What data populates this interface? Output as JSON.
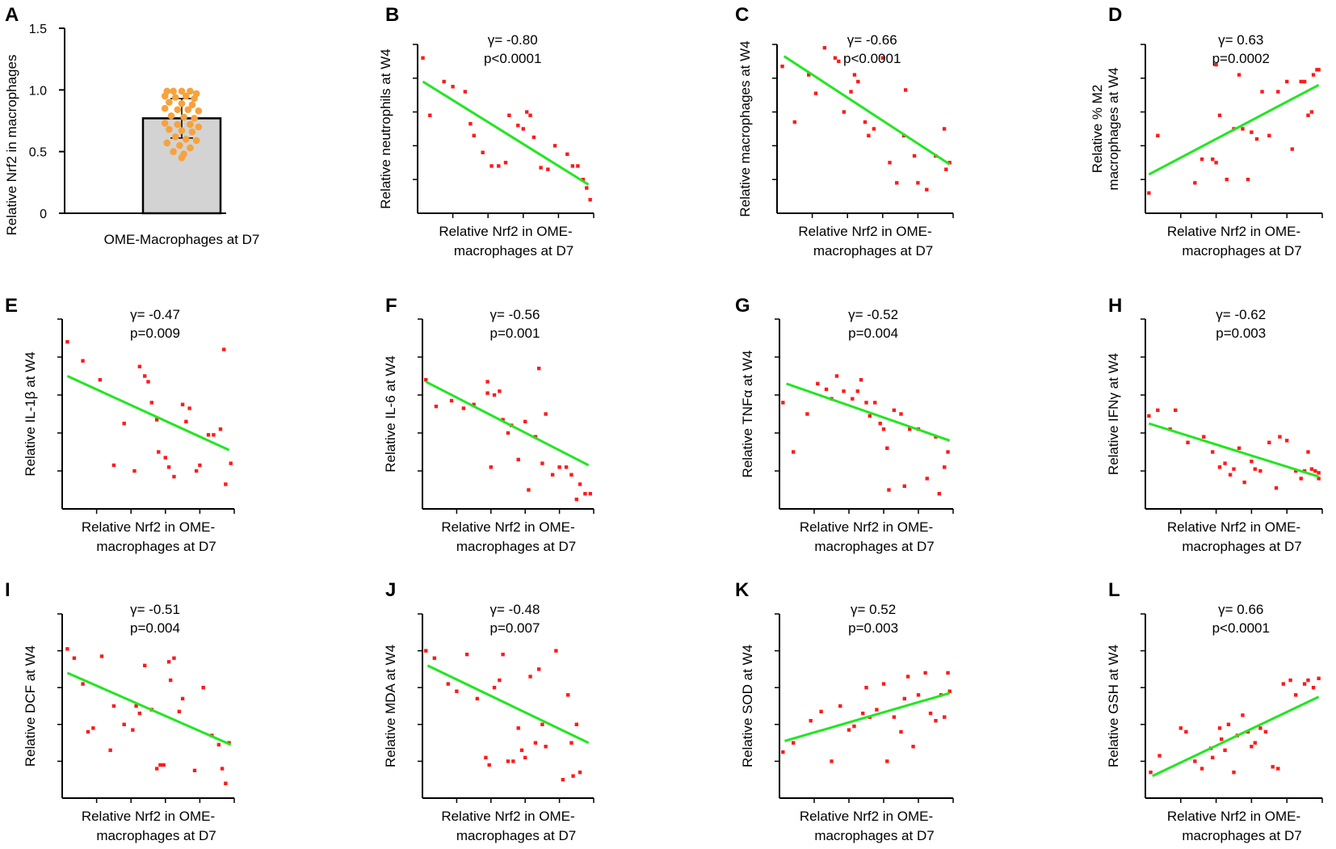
{
  "colors": {
    "point": "#ff1a1a",
    "fit": "#22e622",
    "bar_fill": "#d3d3d3",
    "bar_point": "#f7a23c",
    "axis": "#000000"
  },
  "chart_data": [
    {
      "id": "A",
      "type": "bar",
      "letter": "A",
      "categories": [
        "OME-Macrophages at D7"
      ],
      "values": [
        0.77
      ],
      "error": [
        0.16
      ],
      "ylabel": "Relative Nrf2 in macrophages",
      "ylim": [
        0,
        1.5
      ],
      "yticks": [
        0,
        0.5,
        1.0,
        1.5
      ],
      "ytick_labels": [
        "0",
        "0.5",
        "1.0",
        "1.5"
      ],
      "points": [
        [
          -0.35,
          0.99
        ],
        [
          -0.2,
          0.99
        ],
        [
          0.0,
          0.99
        ],
        [
          0.2,
          0.99
        ],
        [
          0.35,
          0.97
        ],
        [
          -0.4,
          0.95
        ],
        [
          -0.15,
          0.94
        ],
        [
          0.1,
          0.95
        ],
        [
          0.3,
          0.93
        ],
        [
          -0.3,
          0.9
        ],
        [
          0.0,
          0.89
        ],
        [
          0.25,
          0.88
        ],
        [
          -0.4,
          0.85
        ],
        [
          -0.1,
          0.84
        ],
        [
          0.15,
          0.84
        ],
        [
          0.4,
          0.83
        ],
        [
          -0.25,
          0.79
        ],
        [
          0.05,
          0.78
        ],
        [
          0.3,
          0.77
        ],
        [
          -0.4,
          0.73
        ],
        [
          -0.1,
          0.72
        ],
        [
          0.2,
          0.72
        ],
        [
          0.4,
          0.7
        ],
        [
          -0.3,
          0.68
        ],
        [
          0.0,
          0.67
        ],
        [
          0.25,
          0.66
        ],
        [
          -0.15,
          0.62
        ],
        [
          0.1,
          0.6
        ],
        [
          0.35,
          0.59
        ],
        [
          -0.35,
          0.57
        ],
        [
          -0.05,
          0.55
        ],
        [
          0.2,
          0.53
        ],
        [
          -0.2,
          0.5
        ],
        [
          0.05,
          0.48
        ],
        [
          0.0,
          0.45
        ]
      ]
    },
    {
      "id": "B",
      "type": "scatter",
      "letter": "B",
      "ylabel": "Relative neutrophils at W4",
      "xlabel": [
        "Relative Nrf2 in OME-",
        "macrophages at D7"
      ],
      "stat": [
        "γ= -0.80",
        "p<0.0001"
      ],
      "xlim": [
        0,
        1
      ],
      "ylim": [
        0,
        1
      ],
      "ticks": [
        0.2,
        0.4,
        0.6,
        0.8,
        1.0
      ],
      "fit": [
        [
          0.03,
          0.78
        ],
        [
          0.97,
          0.17
        ]
      ],
      "x": [
        0.03,
        0.07,
        0.15,
        0.2,
        0.27,
        0.3,
        0.32,
        0.37,
        0.42,
        0.46,
        0.5,
        0.52,
        0.57,
        0.6,
        0.62,
        0.64,
        0.66,
        0.7,
        0.74,
        0.78,
        0.85,
        0.88,
        0.91,
        0.94,
        0.96,
        0.98
      ],
      "y": [
        0.92,
        0.58,
        0.78,
        0.75,
        0.72,
        0.53,
        0.46,
        0.36,
        0.28,
        0.28,
        0.3,
        0.58,
        0.52,
        0.5,
        0.6,
        0.58,
        0.45,
        0.27,
        0.26,
        0.4,
        0.35,
        0.28,
        0.28,
        0.2,
        0.15,
        0.08
      ]
    },
    {
      "id": "C",
      "type": "scatter",
      "letter": "C",
      "ylabel": "Relative macrophages at W4",
      "xlabel": [
        "Relative Nrf2 in OME-",
        "macrophages at D7"
      ],
      "stat": [
        "γ= -0.66",
        "p<0.0001"
      ],
      "xlim": [
        0,
        1
      ],
      "ylim": [
        0,
        1
      ],
      "ticks": [
        0.2,
        0.4,
        0.6,
        0.8,
        1.0
      ],
      "fit": [
        [
          0.04,
          0.93
        ],
        [
          0.98,
          0.29
        ]
      ],
      "x": [
        0.03,
        0.1,
        0.18,
        0.22,
        0.27,
        0.33,
        0.35,
        0.38,
        0.42,
        0.44,
        0.46,
        0.5,
        0.52,
        0.55,
        0.6,
        0.64,
        0.68,
        0.72,
        0.73,
        0.78,
        0.8,
        0.85,
        0.9,
        0.95,
        0.96,
        0.98
      ],
      "y": [
        0.87,
        0.54,
        0.82,
        0.71,
        0.98,
        0.92,
        0.9,
        0.6,
        0.72,
        0.82,
        0.78,
        0.54,
        0.46,
        0.5,
        0.92,
        0.3,
        0.18,
        0.46,
        0.73,
        0.34,
        0.18,
        0.14,
        0.34,
        0.5,
        0.26,
        0.3
      ]
    },
    {
      "id": "D",
      "type": "scatter",
      "letter": "D",
      "ylabel": [
        "Relative % M2",
        "macrophages at W4"
      ],
      "xlabel": [
        "Relative Nrf2 in OME-",
        "macrophages at D7"
      ],
      "stat": [
        "γ= 0.63",
        "p=0.0002"
      ],
      "xlim": [
        0,
        1
      ],
      "ylim": [
        0,
        1
      ],
      "ticks": [
        0.2,
        0.4,
        0.6,
        0.8,
        1.0
      ],
      "fit": [
        [
          0.02,
          0.23
        ],
        [
          0.98,
          0.76
        ]
      ],
      "x": [
        0.02,
        0.07,
        0.28,
        0.32,
        0.38,
        0.4,
        0.4,
        0.42,
        0.46,
        0.5,
        0.53,
        0.55,
        0.58,
        0.6,
        0.63,
        0.66,
        0.7,
        0.75,
        0.8,
        0.83,
        0.88,
        0.9,
        0.92,
        0.94,
        0.95,
        0.97,
        0.98
      ],
      "y": [
        0.12,
        0.46,
        0.18,
        0.32,
        0.32,
        0.3,
        0.88,
        0.58,
        0.2,
        0.5,
        0.82,
        0.5,
        0.2,
        0.48,
        0.44,
        0.72,
        0.46,
        0.72,
        0.78,
        0.38,
        0.78,
        0.78,
        0.58,
        0.6,
        0.82,
        0.85,
        0.85
      ]
    },
    {
      "id": "E",
      "type": "scatter",
      "letter": "E",
      "ylabel": "Relative IL-1β at W4",
      "xlabel": [
        "Relative Nrf2 in OME-",
        "macrophages at D7"
      ],
      "stat": [
        "γ= -0.47",
        "p=0.009"
      ],
      "xlim": [
        0,
        1
      ],
      "ylim": [
        0,
        1
      ],
      "ticks": [
        0.2,
        0.4,
        0.6,
        0.8,
        1.0
      ],
      "fit": [
        [
          0.03,
          0.7
        ],
        [
          0.97,
          0.31
        ]
      ],
      "x": [
        0.03,
        0.12,
        0.22,
        0.3,
        0.36,
        0.42,
        0.45,
        0.48,
        0.5,
        0.52,
        0.55,
        0.56,
        0.6,
        0.62,
        0.65,
        0.7,
        0.72,
        0.74,
        0.78,
        0.8,
        0.85,
        0.88,
        0.92,
        0.94,
        0.95,
        0.98
      ],
      "y": [
        0.88,
        0.78,
        0.68,
        0.23,
        0.45,
        0.2,
        0.75,
        0.7,
        0.67,
        0.56,
        0.47,
        0.3,
        0.27,
        0.22,
        0.17,
        0.55,
        0.46,
        0.53,
        0.2,
        0.23,
        0.39,
        0.39,
        0.42,
        0.84,
        0.13,
        0.24
      ]
    },
    {
      "id": "F",
      "type": "scatter",
      "letter": "F",
      "ylabel": "Relative IL-6 at W4",
      "xlabel": [
        "Relative Nrf2 in OME-",
        "macrophages at D7"
      ],
      "stat": [
        "γ= -0.56",
        "p=0.001"
      ],
      "xlim": [
        0,
        1
      ],
      "ylim": [
        0,
        1
      ],
      "ticks": [
        0.2,
        0.4,
        0.6,
        0.8,
        1.0
      ],
      "fit": [
        [
          0.02,
          0.67
        ],
        [
          0.97,
          0.23
        ]
      ],
      "x": [
        0.02,
        0.08,
        0.17,
        0.24,
        0.3,
        0.38,
        0.38,
        0.4,
        0.42,
        0.45,
        0.47,
        0.5,
        0.52,
        0.56,
        0.6,
        0.62,
        0.66,
        0.68,
        0.7,
        0.72,
        0.76,
        0.8,
        0.84,
        0.87,
        0.9,
        0.92,
        0.95,
        0.98
      ],
      "y": [
        0.68,
        0.54,
        0.57,
        0.53,
        0.55,
        0.67,
        0.61,
        0.22,
        0.6,
        0.62,
        0.47,
        0.4,
        0.44,
        0.26,
        0.46,
        0.1,
        0.38,
        0.74,
        0.24,
        0.5,
        0.18,
        0.22,
        0.22,
        0.18,
        0.05,
        0.13,
        0.08,
        0.08
      ]
    },
    {
      "id": "G",
      "type": "scatter",
      "letter": "G",
      "ylabel": "Relative TNFα at W4",
      "xlabel": [
        "Relative Nrf2 in OME-",
        "macrophages at D7"
      ],
      "stat": [
        "γ= -0.52",
        "p=0.004"
      ],
      "xlim": [
        0,
        1
      ],
      "ylim": [
        0,
        1
      ],
      "ticks": [
        0.2,
        0.4,
        0.6,
        0.8,
        1.0
      ],
      "fit": [
        [
          0.04,
          0.66
        ],
        [
          0.98,
          0.36
        ]
      ],
      "x": [
        0.02,
        0.08,
        0.16,
        0.22,
        0.27,
        0.3,
        0.33,
        0.37,
        0.42,
        0.45,
        0.47,
        0.5,
        0.52,
        0.55,
        0.58,
        0.6,
        0.62,
        0.63,
        0.66,
        0.7,
        0.72,
        0.75,
        0.8,
        0.85,
        0.9,
        0.92,
        0.95,
        0.97
      ],
      "y": [
        0.56,
        0.3,
        0.5,
        0.66,
        0.63,
        0.58,
        0.7,
        0.62,
        0.58,
        0.62,
        0.68,
        0.56,
        0.49,
        0.56,
        0.45,
        0.42,
        0.32,
        0.1,
        0.52,
        0.5,
        0.12,
        0.42,
        0.42,
        0.16,
        0.38,
        0.08,
        0.22,
        0.3
      ]
    },
    {
      "id": "H",
      "type": "scatter",
      "letter": "H",
      "ylabel": "Relative IFNγ at W4",
      "xlabel": [
        "Relative Nrf2 in OME-",
        "macrophages at D7"
      ],
      "stat": [
        "γ= -0.62",
        "p=0.003"
      ],
      "xlim": [
        0,
        1
      ],
      "ylim": [
        0,
        1
      ],
      "ticks": [
        0.2,
        0.4,
        0.6,
        0.8,
        1.0
      ],
      "fit": [
        [
          0.02,
          0.45
        ],
        [
          0.98,
          0.17
        ]
      ],
      "x": [
        0.02,
        0.07,
        0.14,
        0.17,
        0.24,
        0.33,
        0.38,
        0.42,
        0.45,
        0.48,
        0.5,
        0.53,
        0.56,
        0.6,
        0.62,
        0.65,
        0.7,
        0.74,
        0.76,
        0.8,
        0.85,
        0.88,
        0.9,
        0.92,
        0.94,
        0.96,
        0.98,
        0.98
      ],
      "y": [
        0.49,
        0.52,
        0.42,
        0.52,
        0.35,
        0.38,
        0.3,
        0.22,
        0.24,
        0.18,
        0.21,
        0.32,
        0.14,
        0.25,
        0.21,
        0.2,
        0.35,
        0.11,
        0.38,
        0.36,
        0.2,
        0.16,
        0.2,
        0.3,
        0.21,
        0.2,
        0.19,
        0.16
      ]
    },
    {
      "id": "I",
      "type": "scatter",
      "letter": "I",
      "ylabel": "Relative DCF at W4",
      "xlabel": [
        "Relative Nrf2 in OME-",
        "macrophages at D7"
      ],
      "stat": [
        "γ= -0.51",
        "p=0.004"
      ],
      "xlim": [
        0,
        1
      ],
      "ylim": [
        0,
        1
      ],
      "ticks": [
        0.2,
        0.4,
        0.6,
        0.8,
        1.0
      ],
      "fit": [
        [
          0.03,
          0.68
        ],
        [
          0.98,
          0.29
        ]
      ],
      "x": [
        0.03,
        0.07,
        0.12,
        0.15,
        0.18,
        0.23,
        0.28,
        0.3,
        0.36,
        0.41,
        0.43,
        0.45,
        0.48,
        0.52,
        0.55,
        0.57,
        0.59,
        0.62,
        0.63,
        0.65,
        0.68,
        0.7,
        0.77,
        0.82,
        0.87,
        0.91,
        0.93,
        0.95,
        0.97
      ],
      "y": [
        0.81,
        0.76,
        0.62,
        0.36,
        0.38,
        0.77,
        0.26,
        0.5,
        0.4,
        0.37,
        0.5,
        0.46,
        0.72,
        0.48,
        0.16,
        0.18,
        0.18,
        0.74,
        0.64,
        0.76,
        0.47,
        0.54,
        0.15,
        0.6,
        0.34,
        0.29,
        0.16,
        0.08,
        0.3
      ]
    },
    {
      "id": "J",
      "type": "scatter",
      "letter": "J",
      "ylabel": "Relative MDA at W4",
      "xlabel": [
        "Relative Nrf2 in OME-",
        "macrophages at D7"
      ],
      "stat": [
        "γ= -0.48",
        "p=0.007"
      ],
      "xlim": [
        0,
        1
      ],
      "ylim": [
        0,
        1
      ],
      "ticks": [
        0.2,
        0.4,
        0.6,
        0.8,
        1.0
      ],
      "fit": [
        [
          0.03,
          0.72
        ],
        [
          0.97,
          0.3
        ]
      ],
      "x": [
        0.02,
        0.07,
        0.15,
        0.2,
        0.26,
        0.32,
        0.37,
        0.39,
        0.42,
        0.45,
        0.47,
        0.5,
        0.53,
        0.56,
        0.58,
        0.6,
        0.63,
        0.66,
        0.68,
        0.7,
        0.72,
        0.78,
        0.82,
        0.85,
        0.87,
        0.88,
        0.9,
        0.92
      ],
      "y": [
        0.8,
        0.76,
        0.62,
        0.58,
        0.78,
        0.54,
        0.22,
        0.18,
        0.6,
        0.64,
        0.78,
        0.2,
        0.2,
        0.38,
        0.26,
        0.22,
        0.66,
        0.3,
        0.7,
        0.4,
        0.28,
        0.8,
        0.1,
        0.56,
        0.3,
        0.12,
        0.4,
        0.14
      ]
    },
    {
      "id": "K",
      "type": "scatter",
      "letter": "K",
      "ylabel": "Relative SOD at W4",
      "xlabel": [
        "Relative Nrf2 in OME-",
        "macrophages at D7"
      ],
      "stat": [
        "γ= 0.52",
        "p=0.003"
      ],
      "xlim": [
        0,
        1
      ],
      "ylim": [
        0,
        1
      ],
      "ticks": [
        0.2,
        0.4,
        0.6,
        0.8,
        1.0
      ],
      "fit": [
        [
          0.03,
          0.31
        ],
        [
          0.98,
          0.57
        ]
      ],
      "x": [
        0.02,
        0.08,
        0.18,
        0.24,
        0.3,
        0.35,
        0.4,
        0.43,
        0.48,
        0.5,
        0.52,
        0.56,
        0.6,
        0.62,
        0.66,
        0.7,
        0.72,
        0.74,
        0.77,
        0.8,
        0.84,
        0.87,
        0.9,
        0.93,
        0.95,
        0.97,
        0.98
      ],
      "y": [
        0.25,
        0.3,
        0.42,
        0.47,
        0.2,
        0.5,
        0.37,
        0.39,
        0.46,
        0.6,
        0.44,
        0.48,
        0.62,
        0.2,
        0.44,
        0.36,
        0.54,
        0.66,
        0.28,
        0.56,
        0.68,
        0.46,
        0.42,
        0.56,
        0.44,
        0.68,
        0.58
      ]
    },
    {
      "id": "L",
      "type": "scatter",
      "letter": "L",
      "ylabel": "Relative GSH at W4",
      "xlabel": [
        "Relative Nrf2 in OME-",
        "macrophages at D7"
      ],
      "stat": [
        "γ= 0.66",
        "p<0.0001"
      ],
      "xlim": [
        0,
        1
      ],
      "ylim": [
        0,
        1
      ],
      "ticks": [
        0.2,
        0.4,
        0.6,
        0.8,
        1.0
      ],
      "fit": [
        [
          0.04,
          0.12
        ],
        [
          0.98,
          0.55
        ]
      ],
      "x": [
        0.03,
        0.08,
        0.2,
        0.23,
        0.28,
        0.32,
        0.37,
        0.38,
        0.42,
        0.43,
        0.45,
        0.47,
        0.5,
        0.52,
        0.55,
        0.58,
        0.6,
        0.62,
        0.65,
        0.68,
        0.72,
        0.75,
        0.78,
        0.82,
        0.85,
        0.9,
        0.92,
        0.95,
        0.98
      ],
      "y": [
        0.14,
        0.23,
        0.38,
        0.36,
        0.2,
        0.16,
        0.27,
        0.22,
        0.38,
        0.32,
        0.26,
        0.4,
        0.14,
        0.34,
        0.45,
        0.36,
        0.28,
        0.3,
        0.38,
        0.36,
        0.17,
        0.16,
        0.62,
        0.64,
        0.56,
        0.62,
        0.64,
        0.6,
        0.65
      ]
    }
  ]
}
